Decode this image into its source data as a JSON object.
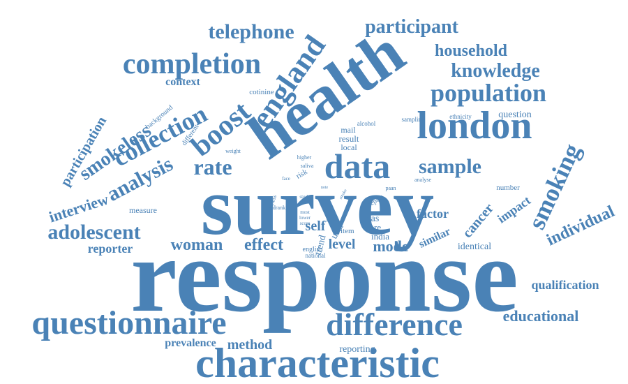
{
  "cloud": {
    "color": "#4a82b6",
    "words": [
      {
        "text": "response",
        "size": 0
      },
      {
        "text": "survey"
      },
      {
        "text": "health"
      },
      {
        "text": "characteristic"
      },
      {
        "text": "questionnaire"
      },
      {
        "text": "london"
      },
      {
        "text": "data"
      },
      {
        "text": "difference"
      },
      {
        "text": "completion"
      },
      {
        "text": "england"
      },
      {
        "text": "boost"
      },
      {
        "text": "collection"
      },
      {
        "text": "population"
      },
      {
        "text": "smoking"
      },
      {
        "text": "adolescent"
      },
      {
        "text": "telephone"
      },
      {
        "text": "participant"
      },
      {
        "text": "knowledge"
      },
      {
        "text": "household"
      },
      {
        "text": "sample"
      },
      {
        "text": "rate"
      },
      {
        "text": "analysis"
      },
      {
        "text": "smokeless"
      },
      {
        "text": "interview"
      },
      {
        "text": "participation"
      },
      {
        "text": "individual"
      },
      {
        "text": "educational"
      },
      {
        "text": "method"
      },
      {
        "text": "woman"
      },
      {
        "text": "effect"
      },
      {
        "text": "mode"
      },
      {
        "text": "level"
      },
      {
        "text": "self"
      },
      {
        "text": "cancer"
      },
      {
        "text": "impact"
      },
      {
        "text": "factor"
      },
      {
        "text": "reporter"
      },
      {
        "text": "qualification"
      },
      {
        "text": "prevalence"
      },
      {
        "text": "reporting"
      },
      {
        "text": "context"
      },
      {
        "text": "measure"
      },
      {
        "text": "similar"
      },
      {
        "text": "identical"
      },
      {
        "text": "number"
      },
      {
        "text": "question"
      },
      {
        "text": "trend"
      },
      {
        "text": "user"
      },
      {
        "text": "bias"
      },
      {
        "text": "core"
      },
      {
        "text": "india"
      },
      {
        "text": "item"
      },
      {
        "text": "result"
      },
      {
        "text": "local"
      },
      {
        "text": "mail"
      },
      {
        "text": "cotinine"
      },
      {
        "text": "background"
      },
      {
        "text": "different"
      },
      {
        "text": "english"
      },
      {
        "text": "national"
      },
      {
        "text": "sampling"
      },
      {
        "text": "ethnicity"
      },
      {
        "text": "alcohol"
      },
      {
        "text": "risk"
      },
      {
        "text": "higher"
      },
      {
        "text": "saliva"
      },
      {
        "text": "weight"
      },
      {
        "text": "report"
      },
      {
        "text": "paan"
      },
      {
        "text": "analyse"
      },
      {
        "text": "drank"
      },
      {
        "text": "illness"
      },
      {
        "text": "study"
      },
      {
        "text": "most"
      },
      {
        "text": "lower"
      },
      {
        "text": "score"
      },
      {
        "text": "more"
      },
      {
        "text": "face"
      },
      {
        "text": "smoke"
      },
      {
        "text": "note"
      }
    ]
  }
}
